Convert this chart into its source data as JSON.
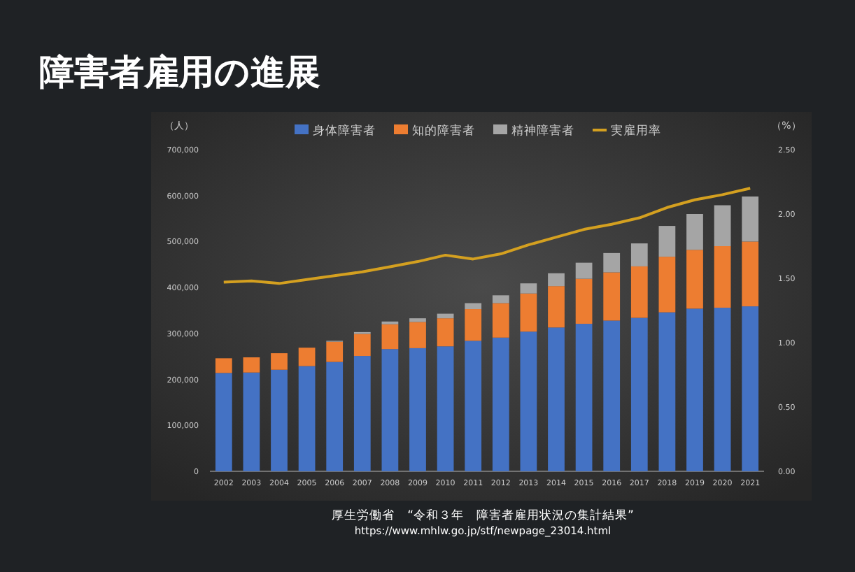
{
  "chart_data": {
    "type": "bar",
    "title": "障害者雇用の進展",
    "ylabel": "（人）",
    "y2label": "（%）",
    "categories": [
      "2002",
      "2003",
      "2004",
      "2005",
      "2006",
      "2007",
      "2008",
      "2009",
      "2010",
      "2011",
      "2012",
      "2013",
      "2014",
      "2015",
      "2016",
      "2017",
      "2018",
      "2019",
      "2020",
      "2021"
    ],
    "stacked": true,
    "legend": "top",
    "grid": false,
    "series": [
      {
        "name": "身体障害者",
        "color": "#4472c4",
        "values": [
          214000,
          215000,
          221000,
          229000,
          238000,
          251000,
          266000,
          268000,
          272000,
          284000,
          291000,
          304000,
          313000,
          321000,
          328000,
          334000,
          346000,
          354000,
          356000,
          359000
        ]
      },
      {
        "name": "知的障害者",
        "color": "#ed7d31",
        "values": [
          32000,
          33000,
          36000,
          40000,
          44000,
          48000,
          54000,
          57000,
          61000,
          69000,
          75000,
          83000,
          90000,
          98000,
          105000,
          112000,
          121000,
          128000,
          134000,
          141000
        ]
      },
      {
        "name": "精神障害者",
        "color": "#a5a5a5",
        "values": [
          null,
          null,
          null,
          null,
          2000,
          4000,
          6000,
          8000,
          10000,
          13000,
          17000,
          22000,
          28000,
          35000,
          42000,
          50000,
          67000,
          78000,
          89000,
          98000
        ]
      },
      {
        "name": "実雇用率",
        "type": "line",
        "axis": "y2",
        "color": "#d4a020",
        "values": [
          1.47,
          1.48,
          1.46,
          1.49,
          1.52,
          1.55,
          1.59,
          1.63,
          1.68,
          1.65,
          1.69,
          1.76,
          1.82,
          1.88,
          1.92,
          1.97,
          2.05,
          2.11,
          2.15,
          2.2
        ]
      }
    ],
    "ylim": [
      0,
      700000
    ],
    "yticks": [
      0,
      {
        "value": 100000,
        "label": "100,000"
      },
      {
        "value": 200000,
        "label": "200,000"
      },
      {
        "value": 300000,
        "label": "300,000"
      },
      {
        "value": 400000,
        "label": "400,000"
      },
      {
        "value": 500000,
        "label": "500,000"
      },
      {
        "value": 600000,
        "label": "600,000"
      },
      {
        "value": 700000,
        "label": "700,000"
      }
    ],
    "y2lim": [
      0,
      2.5
    ],
    "y2ticks": [
      {
        "value": 0,
        "label": "0.00"
      },
      {
        "value": 0.5,
        "label": "0.50"
      },
      {
        "value": 1,
        "label": "1.00"
      },
      {
        "value": 1.5,
        "label": "1.50"
      },
      {
        "value": 2,
        "label": "2.00"
      },
      {
        "value": 2.5,
        "label": "2.50"
      }
    ],
    "annotations": [
      "厚生労働省　“令和３年　障害者雇用状況の集計結果”",
      "https://www.mhlw.go.jp/stf/newpage_23014.html"
    ]
  }
}
